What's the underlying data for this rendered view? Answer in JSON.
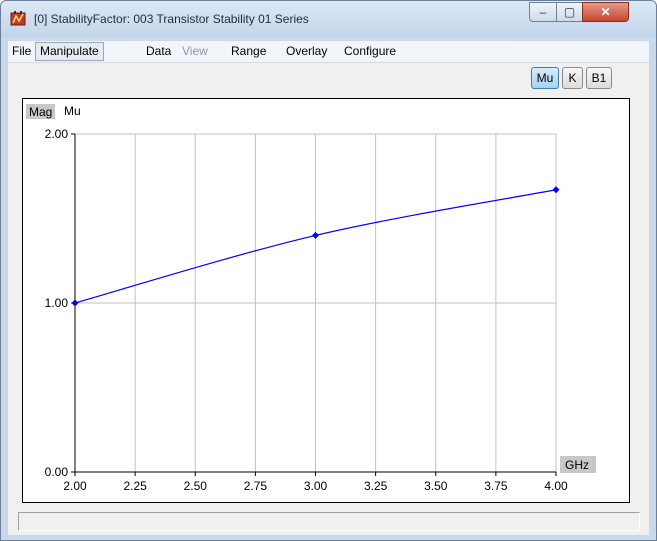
{
  "window": {
    "title": "[0] StabilityFactor: 003 Transistor Stability 01 Series",
    "controls": {
      "minimize": "–",
      "maximize": "▢",
      "close": "✕"
    }
  },
  "menubar": {
    "items": [
      {
        "label": "File",
        "state": "normal"
      },
      {
        "label": "Manipulate",
        "state": "active"
      },
      {
        "label": "Data",
        "state": "normal"
      },
      {
        "label": "View",
        "state": "disabled"
      },
      {
        "label": "Range",
        "state": "normal"
      },
      {
        "label": "Overlay",
        "state": "normal"
      },
      {
        "label": "Configure",
        "state": "normal"
      }
    ]
  },
  "toolbar": {
    "buttons": [
      {
        "label": "Mu",
        "pressed": true
      },
      {
        "label": "K",
        "pressed": false
      },
      {
        "label": "B1",
        "pressed": false
      }
    ]
  },
  "plot": {
    "y_unit_badge": "Mag",
    "trace_label": "Mu",
    "x_unit_badge": "GHz"
  },
  "chart_data": {
    "type": "line",
    "xlim": [
      2.0,
      4.0
    ],
    "ylim": [
      0.0,
      2.0
    ],
    "x_ticks": [
      "2.00",
      "2.25",
      "2.50",
      "2.75",
      "3.00",
      "3.25",
      "3.50",
      "3.75",
      "4.00"
    ],
    "y_ticks": [
      "0.00",
      "1.00",
      "2.00"
    ],
    "grid": true,
    "series": [
      {
        "name": "Mu",
        "color": "#0000ff",
        "points": [
          {
            "x": 2.0,
            "y": 1.0
          },
          {
            "x": 3.0,
            "y": 1.4
          },
          {
            "x": 4.0,
            "y": 1.67
          }
        ]
      }
    ]
  },
  "colors": {
    "trace": "#0000ff",
    "grid": "#c0c0c0",
    "badge": "#c8c8c8"
  }
}
